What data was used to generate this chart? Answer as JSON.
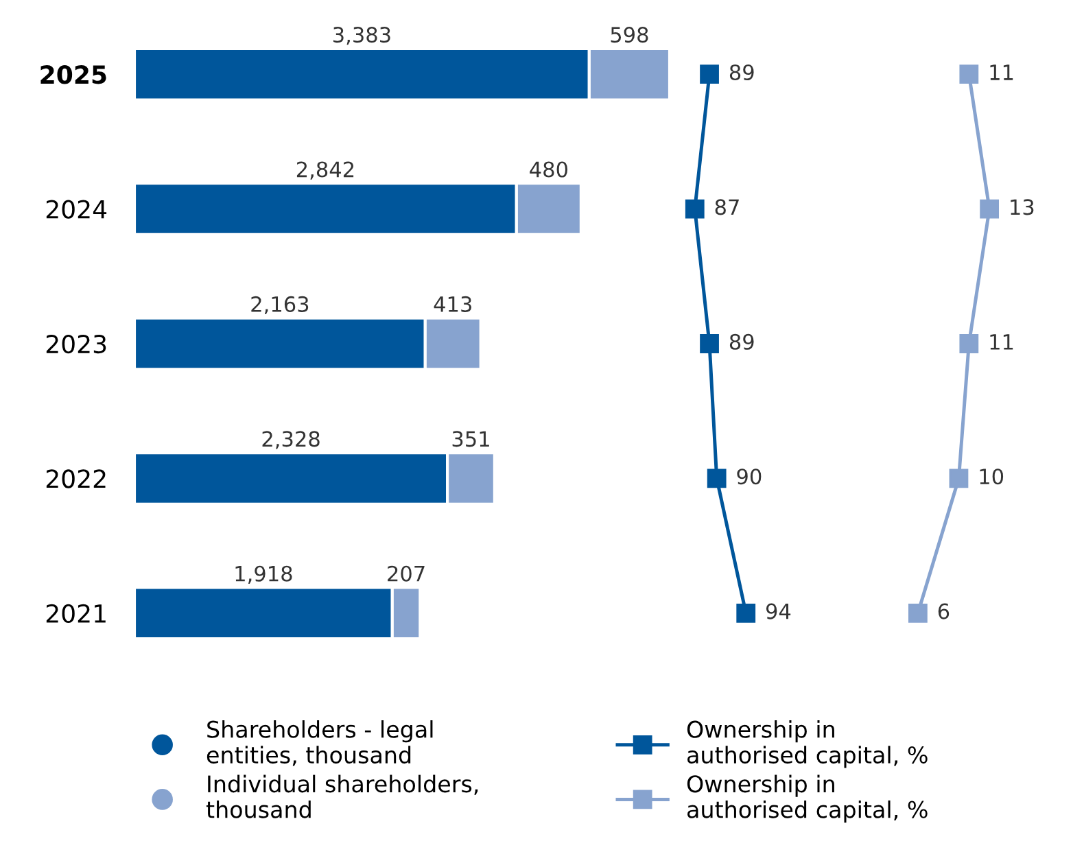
{
  "chart_data": [
    {
      "type": "bar",
      "orientation": "horizontal",
      "stacked": true,
      "categories": [
        "2025",
        "2024",
        "2023",
        "2022",
        "2021"
      ],
      "series": [
        {
          "name": "Shareholders - legal entities, thousand",
          "color": "#00569b",
          "values": [
            3383,
            2842,
            2163,
            2328,
            1918
          ],
          "value_labels": [
            "3,383",
            "2,842",
            "2,163",
            "2,328",
            "1,918"
          ]
        },
        {
          "name": "Individual shareholders, thousand",
          "color": "#87a3cf",
          "values": [
            598,
            480,
            413,
            351,
            207
          ],
          "value_labels": [
            "598",
            "480",
            "413",
            "351",
            "207"
          ]
        }
      ],
      "legend": "bottom",
      "tick_labels": "y"
    },
    {
      "type": "line",
      "orientation": "horizontal",
      "categories": [
        "2025",
        "2024",
        "2023",
        "2022",
        "2021"
      ],
      "series": [
        {
          "name": "Ownership in authorised capital, %",
          "color": "#00569b",
          "values": [
            89,
            87,
            89,
            90,
            94
          ]
        }
      ],
      "marker": "square",
      "data_labels": true,
      "legend": "bottom",
      "tick_labels": false
    },
    {
      "type": "line",
      "orientation": "horizontal",
      "categories": [
        "2025",
        "2024",
        "2023",
        "2022",
        "2021"
      ],
      "series": [
        {
          "name": "Ownership in authorised capital, %",
          "color": "#87a3cf",
          "values": [
            11,
            13,
            11,
            10,
            6
          ]
        }
      ],
      "marker": "square",
      "data_labels": true,
      "legend": "bottom",
      "tick_labels": false
    }
  ]
}
